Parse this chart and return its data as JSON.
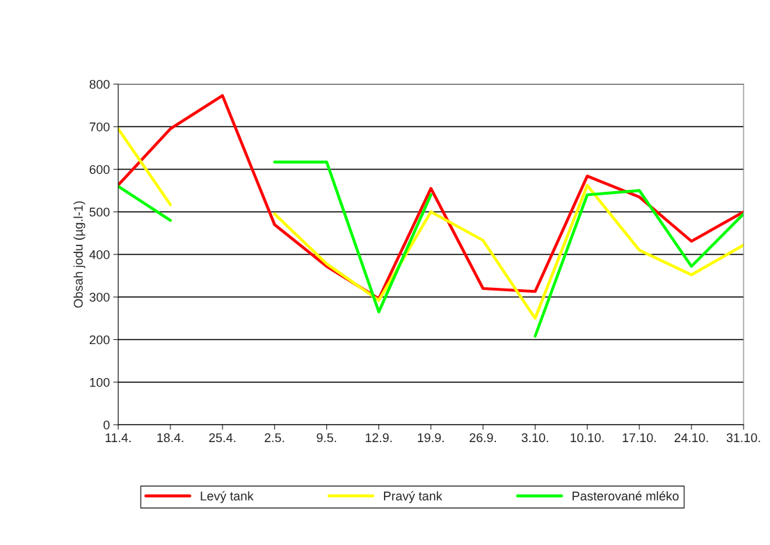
{
  "chart_data": {
    "type": "line",
    "ylabel": "Obsah jodu (µg.l-1)",
    "categories": [
      "11.4.",
      "18.4.",
      "25.4.",
      "2.5.",
      "9.5.",
      "12.9.",
      "19.9.",
      "26.9.",
      "3.10.",
      "10.10.",
      "17.10.",
      "24.10.",
      "31.10."
    ],
    "series": [
      {
        "name": "Levý tank",
        "color": "#ff0000",
        "values": [
          563,
          695,
          773,
          470,
          372,
          296,
          555,
          320,
          313,
          584,
          535,
          431,
          500
        ]
      },
      {
        "name": "Pravý tank",
        "color": "#ffff00",
        "values": [
          695,
          517,
          null,
          495,
          378,
          292,
          500,
          433,
          250,
          562,
          410,
          352,
          422
        ]
      },
      {
        "name": "Pasterované mléko",
        "color": "#00ff00",
        "values": [
          560,
          480,
          null,
          617,
          617,
          265,
          540,
          null,
          208,
          540,
          550,
          372,
          495
        ]
      }
    ],
    "ylim": [
      0,
      800
    ],
    "yticks": [
      0,
      100,
      200,
      300,
      400,
      500,
      600,
      700,
      800
    ],
    "grid": "y",
    "legend": "bottom",
    "marker": "none",
    "line_style": "solid"
  }
}
